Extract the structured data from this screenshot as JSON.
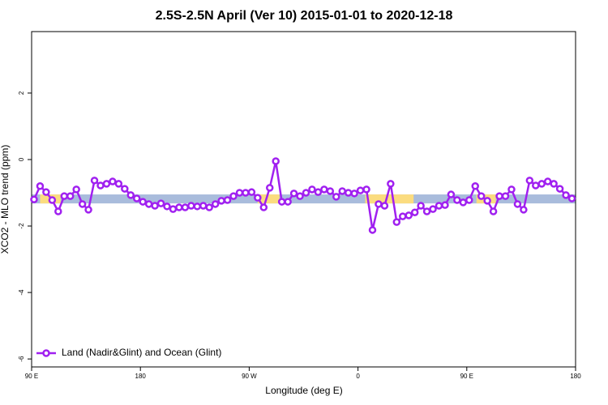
{
  "chart_data": {
    "type": "line",
    "title": "2.5S-2.5N April (Ver 10)   2015-01-01 to 2020-12-18",
    "x_label": "Longitude (deg E)",
    "y_label": "XCO2 - MLO trend (ppm)",
    "xlim": [
      90,
      540
    ],
    "ylim": [
      -6.24,
      3.85
    ],
    "xticks": [
      {
        "value": 90,
        "label": "90 E"
      },
      {
        "value": 180,
        "label": "180"
      },
      {
        "value": 270,
        "label": "90 W"
      },
      {
        "value": 360,
        "label": "0"
      },
      {
        "value": 450,
        "label": "90 E"
      },
      {
        "value": 540,
        "label": "180"
      }
    ],
    "yticks": [
      -6,
      -4,
      -2,
      0,
      2
    ],
    "band_ylim": [
      -1.32,
      -1.05
    ],
    "bands": [
      {
        "x": [
          90,
          540
        ],
        "color": "#a9bcdc"
      },
      {
        "x": [
          97,
          114
        ],
        "color": "#fbdc7f"
      },
      {
        "x": [
          277,
          295
        ],
        "color": "#fbdc7f"
      },
      {
        "x": [
          366,
          406
        ],
        "color": "#fbdc7f"
      },
      {
        "x": [
          458,
          474
        ],
        "color": "#fbdc7f"
      }
    ],
    "legend": "bottom-left",
    "x": [
      92,
      97,
      102,
      107,
      112,
      117,
      122,
      127,
      132,
      137,
      142,
      147,
      152,
      157,
      162,
      167,
      172,
      177,
      182,
      187,
      192,
      197,
      202,
      207,
      212,
      217,
      222,
      227,
      232,
      237,
      242,
      247,
      252,
      257,
      262,
      267,
      272,
      277,
      282,
      287,
      292,
      297,
      302,
      307,
      312,
      317,
      322,
      327,
      332,
      337,
      342,
      347,
      352,
      357,
      362,
      367,
      372,
      377,
      382,
      387,
      392,
      397,
      402,
      407,
      412,
      417,
      422,
      427,
      432,
      437,
      442,
      447,
      452,
      457,
      462,
      467,
      472,
      477,
      482,
      487,
      492,
      497,
      502,
      507,
      512,
      517,
      522,
      527,
      532,
      537
    ],
    "series": [
      {
        "name": "Land (Nadir&Glint) and Ocean (Glint)",
        "color": "#a020f0",
        "values": [
          -1.2,
          -0.8,
          -0.98,
          -1.22,
          -1.56,
          -1.1,
          -1.1,
          -0.9,
          -1.34,
          -1.51,
          -0.63,
          -0.78,
          -0.73,
          -0.66,
          -0.73,
          -0.88,
          -1.07,
          -1.17,
          -1.27,
          -1.34,
          -1.39,
          -1.32,
          -1.41,
          -1.49,
          -1.44,
          -1.44,
          -1.39,
          -1.41,
          -1.39,
          -1.44,
          -1.34,
          -1.24,
          -1.22,
          -1.1,
          -1.0,
          -1.0,
          -0.98,
          -1.15,
          -1.44,
          -0.85,
          -0.05,
          -1.27,
          -1.27,
          -1.02,
          -1.1,
          -1.0,
          -0.9,
          -0.98,
          -0.9,
          -0.95,
          -1.12,
          -0.95,
          -1.0,
          -1.02,
          -0.93,
          -0.9,
          -2.12,
          -1.34,
          -1.39,
          -0.73,
          -1.88,
          -1.71,
          -1.68,
          -1.59,
          -1.39,
          -1.56,
          -1.49,
          -1.39,
          -1.37,
          -1.05,
          -1.22,
          -1.29,
          -1.22,
          -0.8,
          -1.1,
          -1.24,
          -1.56,
          -1.1,
          -1.1,
          -0.9,
          -1.34,
          -1.51,
          -0.63,
          -0.78,
          -0.73,
          -0.66,
          -0.73,
          -0.88,
          -1.07,
          -1.17
        ]
      }
    ]
  }
}
